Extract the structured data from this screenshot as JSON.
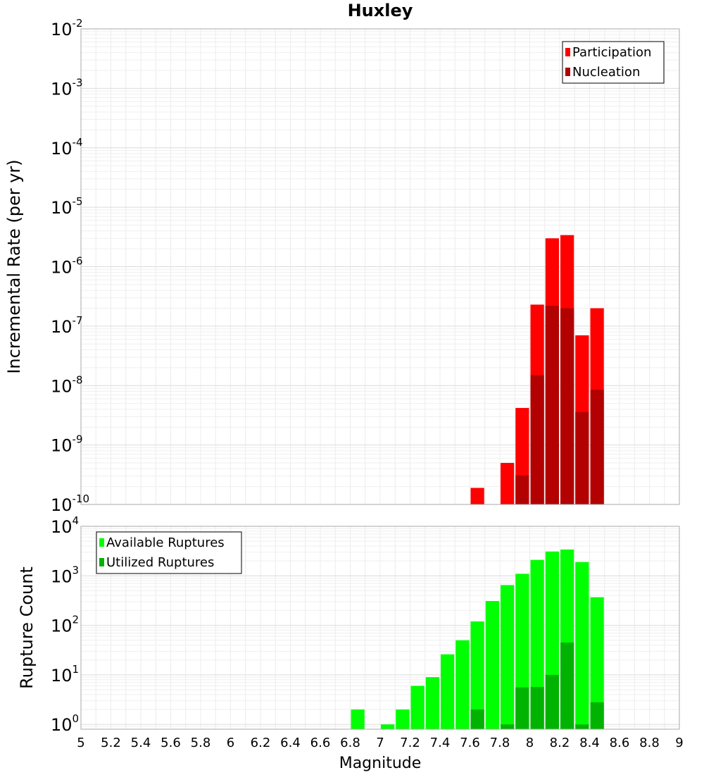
{
  "chart_data": [
    {
      "type": "bar",
      "title": "Huxley",
      "ylabel": "Incremental Rate (per yr)",
      "xlabel": "",
      "scale_y": "log",
      "ylim": [
        1e-10,
        0.01
      ],
      "xlim": [
        5,
        9
      ],
      "y_tick_exponents": [
        "-2",
        "-3",
        "-4",
        "-5",
        "-6",
        "-7",
        "-8",
        "-9",
        "-10"
      ],
      "legend": {
        "position": "top-right",
        "entries": [
          "Participation",
          "Nucleation"
        ]
      },
      "colors": {
        "Participation": "#ff0000",
        "Nucleation": "#b30000"
      },
      "x": [
        7.65,
        7.85,
        7.95,
        8.05,
        8.15,
        8.25,
        8.35,
        8.45
      ],
      "series": [
        {
          "name": "Participation",
          "values": [
            1.9e-10,
            5e-10,
            4.2e-09,
            2.3e-07,
            3e-06,
            3.4e-06,
            7e-08,
            2e-07
          ]
        },
        {
          "name": "Nucleation",
          "values": [
            null,
            null,
            3.1e-10,
            1.5e-08,
            2.2e-07,
            2e-07,
            3.6e-09,
            8.5e-09
          ]
        }
      ]
    },
    {
      "type": "bar",
      "title": "",
      "ylabel": "Rupture Count",
      "xlabel": "Magnitude",
      "scale_y": "log",
      "ylim": [
        0.8,
        10000.0
      ],
      "xlim": [
        5,
        9
      ],
      "y_tick_exponents": [
        "4",
        "3",
        "2",
        "1",
        "0"
      ],
      "x_tick_labels": [
        "5",
        "5.2",
        "5.4",
        "5.6",
        "5.8",
        "6",
        "6.2",
        "6.4",
        "6.6",
        "6.8",
        "7",
        "7.2",
        "7.4",
        "7.6",
        "7.8",
        "8",
        "8.2",
        "8.4",
        "8.6",
        "8.8",
        "9"
      ],
      "legend": {
        "position": "top-left",
        "entries": [
          "Available Ruptures",
          "Utilized Ruptures"
        ]
      },
      "colors": {
        "Available Ruptures": "#00ff00",
        "Utilized Ruptures": "#00b300"
      },
      "x": [
        6.85,
        7.05,
        7.15,
        7.25,
        7.35,
        7.45,
        7.55,
        7.65,
        7.75,
        7.85,
        7.95,
        8.05,
        8.15,
        8.25,
        8.35,
        8.45
      ],
      "series": [
        {
          "name": "Available Ruptures",
          "values": [
            2,
            1,
            2,
            6,
            9,
            26,
            50,
            120,
            310,
            650,
            1100,
            2100,
            3100,
            3400,
            1900,
            370
          ]
        },
        {
          "name": "Utilized Ruptures",
          "values": [
            null,
            null,
            null,
            null,
            null,
            null,
            null,
            2,
            null,
            1,
            5.6,
            5.7,
            10,
            45,
            1,
            2.8
          ]
        }
      ]
    }
  ]
}
